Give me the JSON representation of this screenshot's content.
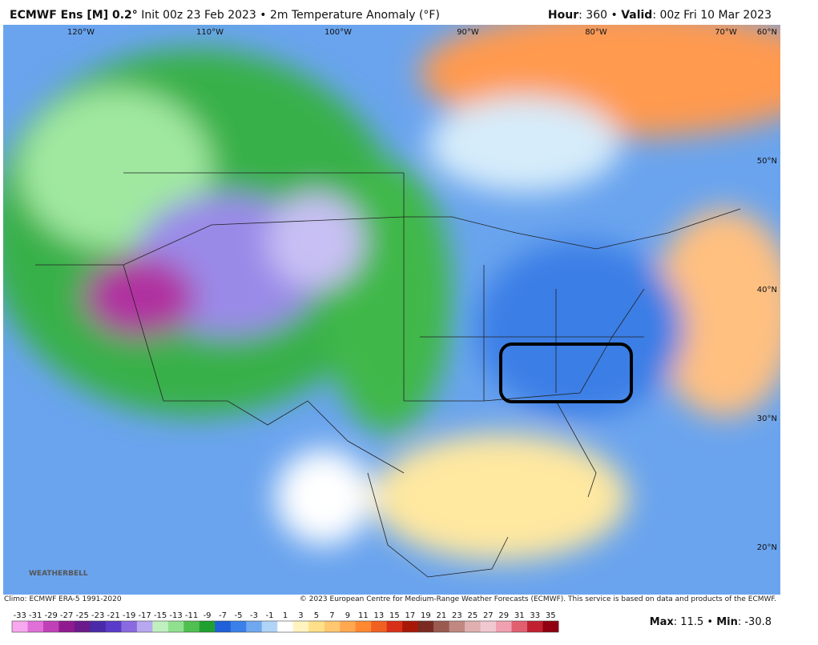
{
  "header": {
    "model": "ECMWF Ens [M] 0.2°",
    "init": "Init 00z 23 Feb 2023 • 2m Temperature Anomaly (°F)",
    "hour_label": "Hour",
    "hour": ": 360 • ",
    "valid_label": "Valid",
    "valid": ": 00z Fri 10 Mar 2023"
  },
  "map": {
    "lon_labels": [
      "120°W",
      "110°W",
      "100°W",
      "90°W",
      "80°W",
      "70°W"
    ],
    "lat_labels": [
      "60°N",
      "50°N",
      "40°N",
      "30°N",
      "20°N"
    ],
    "logo": "WEATHERBELL"
  },
  "footer": {
    "climo": "Climo: ECMWF ERA-5 1991-2020",
    "copyright": "© 2023 European Centre for Medium-Range Weather Forecasts (ECMWF). This service is based on data and products of the ECMWF.",
    "max_label": "Max",
    "max": ": 11.5 • ",
    "min_label": "Min",
    "min": ": -30.8"
  },
  "colorbar": {
    "labels": [
      -33,
      -31,
      -29,
      -27,
      -25,
      -23,
      -21,
      -19,
      -17,
      -15,
      -13,
      -11,
      -9,
      -7,
      -5,
      -3,
      -1,
      1,
      3,
      5,
      7,
      9,
      11,
      13,
      15,
      17,
      19,
      21,
      23,
      25,
      27,
      29,
      31,
      33,
      35
    ],
    "colors": [
      "#f7a8ee",
      "#e070d8",
      "#c040b8",
      "#901a90",
      "#6a1a8a",
      "#4a2aa8",
      "#5a3ac8",
      "#8a6ae0",
      "#b8a8f0",
      "#c0f0c0",
      "#90e090",
      "#50c050",
      "#20a030",
      "#2060d8",
      "#3a80e8",
      "#70a8f0",
      "#b0d4f8",
      "#ffffff",
      "#fff4c0",
      "#ffe088",
      "#ffc870",
      "#ffa850",
      "#ff8830",
      "#f06020",
      "#d83018",
      "#a81808",
      "#7a2a20",
      "#9a5a50",
      "#c08880",
      "#e0b0b0",
      "#f0c8d0",
      "#f0a0b0",
      "#e06070",
      "#c02030",
      "#900010"
    ]
  }
}
